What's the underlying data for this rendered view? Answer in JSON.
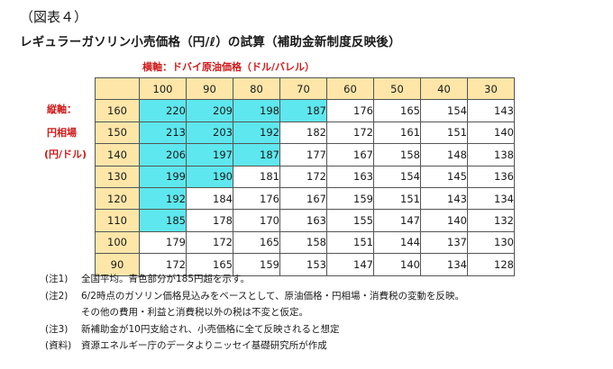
{
  "figure_label": "（図表４）",
  "title": "レギュラーガソリン小売価格（円/ℓ）の試算（補助金新制度反映後）",
  "x_axis_label": "横軸：ドバイ原油価格（ドル/バレル）",
  "y_axis_label": [
    "縦軸：",
    "円相場",
    "(円/ドル)"
  ],
  "columns": [
    "100",
    "90",
    "80",
    "70",
    "60",
    "50",
    "40",
    "30"
  ],
  "rows": [
    {
      "label": "160",
      "values": [
        "220",
        "209",
        "198",
        "187",
        "176",
        "165",
        "154",
        "143"
      ],
      "highlighted": 4
    },
    {
      "label": "150",
      "values": [
        "213",
        "203",
        "192",
        "182",
        "172",
        "161",
        "151",
        "140"
      ],
      "highlighted": 3
    },
    {
      "label": "140",
      "values": [
        "206",
        "197",
        "187",
        "177",
        "167",
        "158",
        "148",
        "138"
      ],
      "highlighted": 3
    },
    {
      "label": "130",
      "values": [
        "199",
        "190",
        "181",
        "172",
        "163",
        "154",
        "145",
        "136"
      ],
      "highlighted": 2
    },
    {
      "label": "120",
      "values": [
        "192",
        "184",
        "176",
        "167",
        "159",
        "151",
        "143",
        "134"
      ],
      "highlighted": 1
    },
    {
      "label": "110",
      "values": [
        "185",
        "178",
        "170",
        "163",
        "155",
        "147",
        "140",
        "132"
      ],
      "highlighted": 1
    },
    {
      "label": "100",
      "values": [
        "179",
        "172",
        "165",
        "158",
        "151",
        "144",
        "137",
        "130"
      ],
      "highlighted": 0
    },
    {
      "label": "90",
      "values": [
        "172",
        "165",
        "159",
        "153",
        "147",
        "140",
        "134",
        "128"
      ],
      "highlighted": 0
    }
  ],
  "highlight_color": "#5ee7ee",
  "header_color": "#fde6a8",
  "notes": [
    {
      "tag": "(注1)",
      "text": "全国平均。青色部分が185円超を示す。"
    },
    {
      "tag": "(注2)",
      "text": "6/2時点のガソリン価格見込みをベースとして、原油価格・円相場・消費税の変動を反映。"
    },
    {
      "tag": "",
      "text": "その他の費用・利益と消費税以外の税は不変と仮定。"
    },
    {
      "tag": "(注3)",
      "text": "新補助金が10円支給され、小売価格に全て反映されると想定"
    },
    {
      "tag": "(資料)",
      "text": "資源エネルギー庁のデータよりニッセイ基礎研究所が作成"
    }
  ]
}
